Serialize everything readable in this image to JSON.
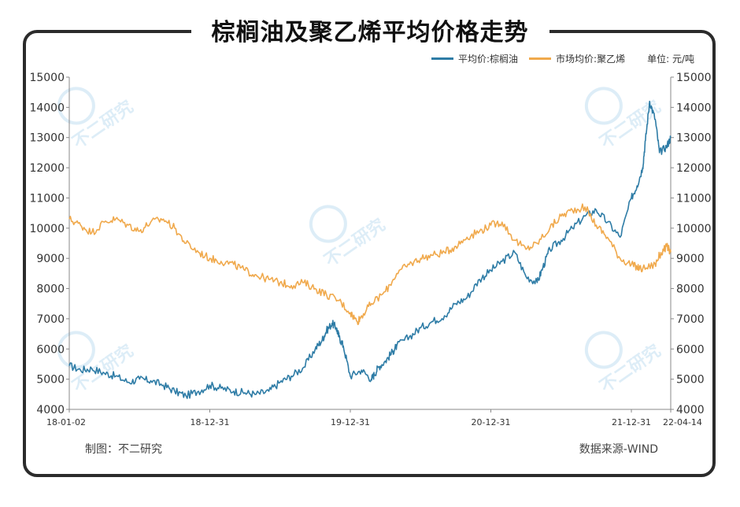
{
  "title": "棕榈油及聚乙烯平均价格走势",
  "legend": {
    "series1": "平均价:棕榈油",
    "series2": "市场均价:聚乙烯",
    "unit": "单位: 元/吨",
    "color1": "#2e7ca6",
    "color2": "#f0a94c"
  },
  "footer": {
    "left": "制图：不二研究",
    "right": "数据来源-WIND"
  },
  "watermark": "不二研究",
  "chart_data": {
    "type": "line",
    "title": "棕榈油及聚乙烯平均价格走势",
    "ylim": [
      4000,
      15000
    ],
    "y2lim": [
      4000,
      15000
    ],
    "yticks": [
      "4000",
      "5000",
      "6000",
      "7000",
      "8000",
      "9000",
      "10000",
      "11000",
      "12000",
      "13000",
      "14000",
      "15000"
    ],
    "y2ticks": [
      "4000",
      "5000",
      "6000",
      "7000",
      "8000",
      "9000",
      "10000",
      "11000",
      "12000",
      "13000",
      "14000",
      "15000"
    ],
    "xticks": [
      "18-01-02",
      "18-12-31",
      "19-12-31",
      "20-12-31",
      "21-12-31",
      "22-04-14"
    ],
    "xtick_positions": [
      0,
      1.0,
      2.0,
      3.0,
      4.0,
      4.28
    ],
    "x_unit": "years since 18-01-02",
    "grid": false,
    "series": [
      {
        "name": "平均价:棕榈油",
        "color": "#2e7ca6",
        "x": [
          0,
          0.08,
          0.16,
          0.25,
          0.33,
          0.42,
          0.5,
          0.58,
          0.67,
          0.75,
          0.83,
          0.92,
          1.0,
          1.08,
          1.17,
          1.25,
          1.33,
          1.42,
          1.5,
          1.58,
          1.67,
          1.75,
          1.8,
          1.83,
          1.87,
          1.9,
          1.92,
          1.95,
          2.0,
          2.08,
          2.15,
          2.17,
          2.2,
          2.25,
          2.3,
          2.33,
          2.42,
          2.5,
          2.58,
          2.67,
          2.75,
          2.83,
          2.92,
          3.0,
          3.08,
          3.17,
          3.25,
          3.33,
          3.37,
          3.42,
          3.5,
          3.58,
          3.67,
          3.75,
          3.83,
          3.92,
          4.0,
          4.04,
          4.08,
          4.1,
          4.13,
          4.17,
          4.2,
          4.25,
          4.28
        ],
        "values": [
          5450,
          5300,
          5350,
          5200,
          5100,
          4900,
          5000,
          4950,
          4800,
          4600,
          4450,
          4600,
          4800,
          4700,
          4600,
          4550,
          4500,
          4600,
          4900,
          5100,
          5400,
          6000,
          6300,
          6600,
          6850,
          6700,
          6400,
          6100,
          5100,
          5300,
          5000,
          5150,
          5400,
          5600,
          5900,
          6100,
          6400,
          6700,
          6900,
          7100,
          7500,
          7700,
          8300,
          8600,
          8900,
          9200,
          8400,
          8200,
          8700,
          9300,
          9600,
          10000,
          10400,
          10600,
          10200,
          9700,
          11000,
          11400,
          12000,
          12900,
          14200,
          13600,
          12500,
          12700,
          13000
        ]
      },
      {
        "name": "市场均价:聚乙烯",
        "color": "#f0a94c",
        "x": [
          0,
          0.08,
          0.16,
          0.25,
          0.33,
          0.42,
          0.5,
          0.58,
          0.67,
          0.75,
          0.83,
          0.92,
          1.0,
          1.08,
          1.17,
          1.25,
          1.33,
          1.42,
          1.5,
          1.58,
          1.67,
          1.75,
          1.83,
          1.92,
          2.0,
          2.05,
          2.08,
          2.15,
          2.25,
          2.33,
          2.42,
          2.5,
          2.58,
          2.67,
          2.75,
          2.83,
          2.92,
          3.0,
          3.08,
          3.17,
          3.25,
          3.33,
          3.42,
          3.5,
          3.58,
          3.67,
          3.75,
          3.83,
          3.92,
          4.0,
          4.04,
          4.08,
          4.17,
          4.2,
          4.25,
          4.28
        ],
        "values": [
          10300,
          10100,
          9850,
          10200,
          10300,
          10100,
          9900,
          10200,
          10300,
          10000,
          9500,
          9200,
          9000,
          8900,
          8800,
          8600,
          8450,
          8300,
          8200,
          8100,
          8200,
          8000,
          7800,
          7600,
          7200,
          6900,
          7100,
          7500,
          7900,
          8500,
          8800,
          9000,
          9100,
          9200,
          9400,
          9700,
          9900,
          10100,
          10200,
          9600,
          9300,
          9500,
          10000,
          10400,
          10600,
          10700,
          10100,
          9700,
          9000,
          8800,
          8700,
          8650,
          8800,
          9100,
          9400,
          9200
        ]
      }
    ]
  }
}
